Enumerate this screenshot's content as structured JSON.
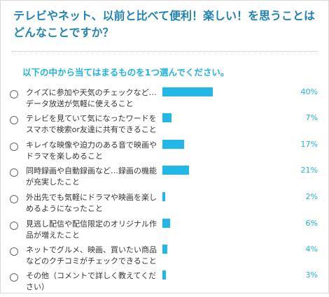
{
  "question": {
    "title": "テレビやネット、以前と比べて便利！楽しい！を思うことはどんなことですか？",
    "instruction": "以下の中から当てはまるものを1つ選んでください。"
  },
  "options": [
    {
      "label": "クイズに参加や天気のチェックなど…データ放送が気軽に使えること",
      "percent": "40%",
      "value": 40
    },
    {
      "label": "テレビを見ていて気になったワードをスマホで検索or友達に共有できること",
      "percent": "7%",
      "value": 7
    },
    {
      "label": "キレイな映像や迫力のある音で映画やドラマを楽しめること",
      "percent": "17%",
      "value": 17
    },
    {
      "label": "同時録画や自動録画など…録画の機能が充実したこと",
      "percent": "21%",
      "value": 21
    },
    {
      "label": "外出先でも気軽にドラマや映画を楽しめるようになったこと",
      "percent": "2%",
      "value": 2
    },
    {
      "label": "見逃し配信や配信限定のオリジナル作品が増えたこと",
      "percent": "6%",
      "value": 6
    },
    {
      "label": "ネットでグルメ、映画、買いたい商品などのクチコミがチェックできること",
      "percent": "4%",
      "value": 4
    },
    {
      "label": "その他（コメントで詳しく教えてください）",
      "percent": "3%",
      "value": 3
    }
  ],
  "colors": {
    "accent": "#1fb2e3",
    "bar": "#22b7e6",
    "title": "#1f83b6"
  }
}
